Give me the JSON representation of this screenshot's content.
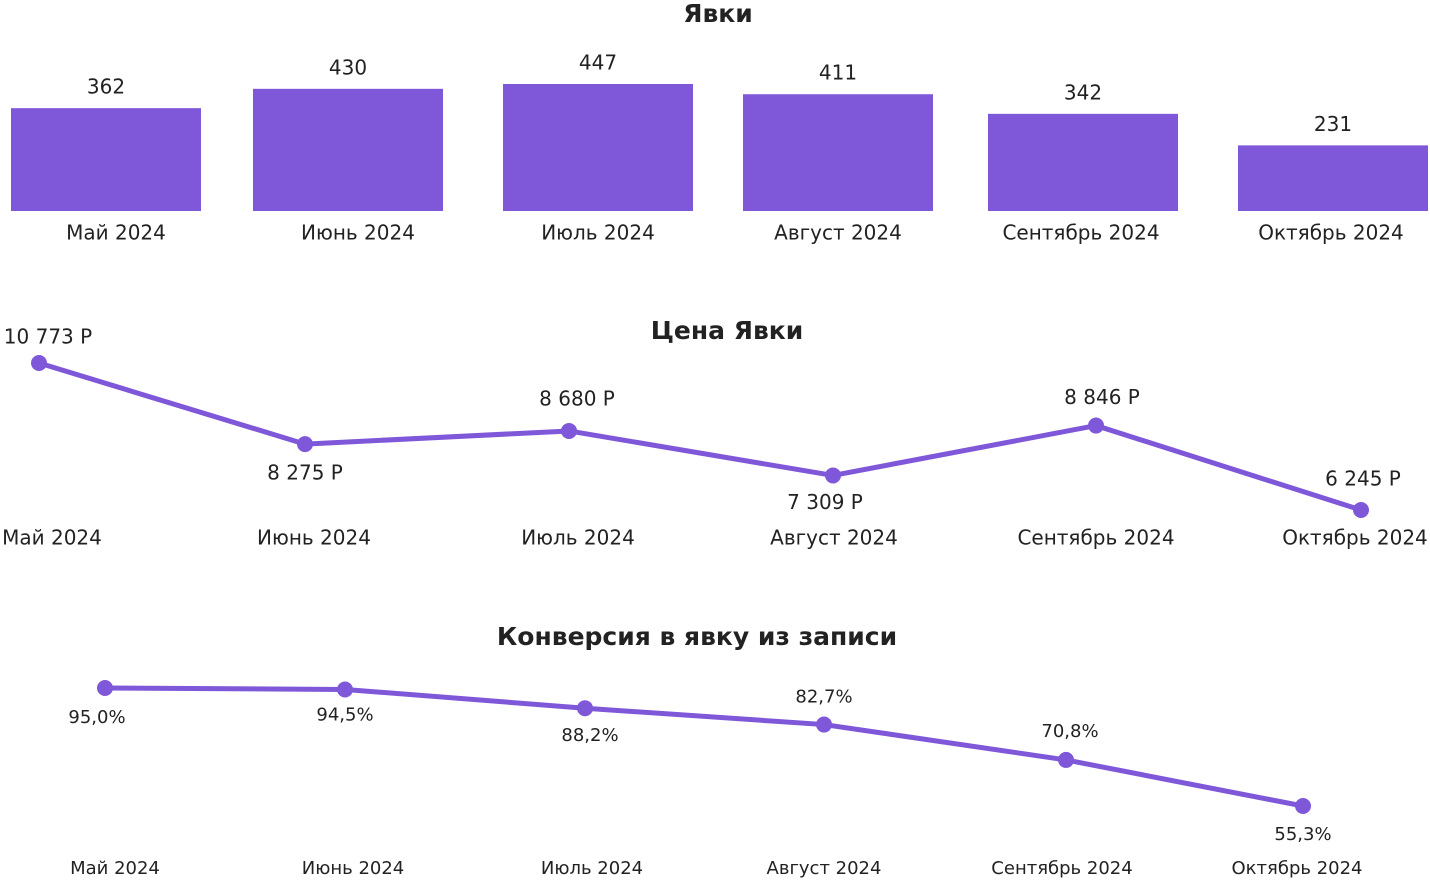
{
  "chart_data": [
    {
      "type": "bar",
      "title": "Явки",
      "color": "#7f58d9",
      "categories": [
        "Май 2024",
        "Июнь 2024",
        "Июль 2024",
        "Август 2024",
        "Сентябрь 2024",
        "Октябрь 2024"
      ],
      "values": [
        362,
        430,
        447,
        411,
        342,
        231
      ]
    },
    {
      "type": "line",
      "title": "Цена Явки",
      "color": "#7f58d9",
      "categories": [
        "Май 2024",
        "Июнь 2024",
        "Июль 2024",
        "Август 2024",
        "Сентябрь 2024",
        "Октябрь 2024"
      ],
      "values": [
        10773,
        8275,
        8680,
        7309,
        8846,
        6245
      ],
      "value_labels": [
        "10 773 Р",
        "8 275 Р",
        "8 680 Р",
        "7 309 Р",
        "8 846 Р",
        "6 245 Р"
      ]
    },
    {
      "type": "line",
      "title": "Конверсия в явку из записи",
      "color": "#7f58d9",
      "categories": [
        "Май 2024",
        "Июнь 2024",
        "Июль 2024",
        "Август 2024",
        "Сентябрь 2024",
        "Октябрь 2024"
      ],
      "values": [
        95.0,
        94.5,
        88.2,
        82.7,
        70.8,
        55.3
      ],
      "value_labels": [
        "95,0%",
        "94,5%",
        "88,2%",
        "82,7%",
        "70,8%",
        "55,3%"
      ]
    }
  ]
}
